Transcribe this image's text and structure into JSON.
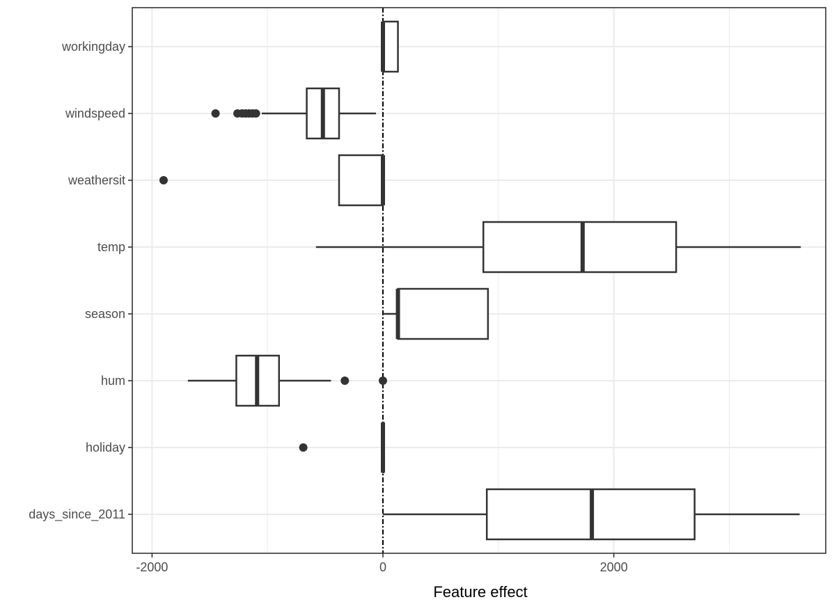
{
  "chart_data": {
    "type": "boxplot",
    "orientation": "horizontal",
    "xlabel": "Feature effect",
    "ylabel": "",
    "xlim": [
      -2200,
      3800
    ],
    "x_ticks": [
      -2000,
      0,
      2000
    ],
    "x_tick_labels": [
      "-2000",
      "0",
      "2000"
    ],
    "grid": true,
    "reference_line": {
      "x": 0,
      "style": "dotdash"
    },
    "categories": [
      "workingday",
      "windspeed",
      "weathersit",
      "temp",
      "season",
      "hum",
      "holiday",
      "days_since_2011"
    ],
    "boxes": [
      {
        "feature": "workingday",
        "whisker_low": 0,
        "q1": 0,
        "median": 0,
        "q3": 130,
        "whisker_high": 130,
        "outliers": []
      },
      {
        "feature": "windspeed",
        "whisker_low": -1050,
        "q1": -660,
        "median": -520,
        "q3": -380,
        "whisker_high": -60,
        "outliers": [
          -1450,
          -1260,
          -1220,
          -1190,
          -1160,
          -1130,
          -1100
        ]
      },
      {
        "feature": "weathersit",
        "whisker_low": -380,
        "q1": -380,
        "median": 0,
        "q3": 0,
        "whisker_high": 0,
        "outliers": [
          -1900
        ]
      },
      {
        "feature": "temp",
        "whisker_low": -580,
        "q1": 870,
        "median": 1730,
        "q3": 2540,
        "whisker_high": 3620,
        "outliers": []
      },
      {
        "feature": "season",
        "whisker_low": 0,
        "q1": 130,
        "median": 130,
        "q3": 910,
        "whisker_high": 910,
        "outliers": []
      },
      {
        "feature": "hum",
        "whisker_low": -1690,
        "q1": -1270,
        "median": -1090,
        "q3": -900,
        "whisker_high": -450,
        "outliers": [
          -330,
          0
        ]
      },
      {
        "feature": "holiday",
        "whisker_low": 0,
        "q1": 0,
        "median": 0,
        "q3": 0,
        "whisker_high": 0,
        "outliers": [
          -690
        ]
      },
      {
        "feature": "days_since_2011",
        "whisker_low": 0,
        "q1": 900,
        "median": 1810,
        "q3": 2700,
        "whisker_high": 3610,
        "outliers": []
      }
    ],
    "colors": {
      "box_fill": "#ffffff",
      "line": "#333333",
      "grid": "#ebebeb",
      "panel_border": "#333333"
    }
  }
}
